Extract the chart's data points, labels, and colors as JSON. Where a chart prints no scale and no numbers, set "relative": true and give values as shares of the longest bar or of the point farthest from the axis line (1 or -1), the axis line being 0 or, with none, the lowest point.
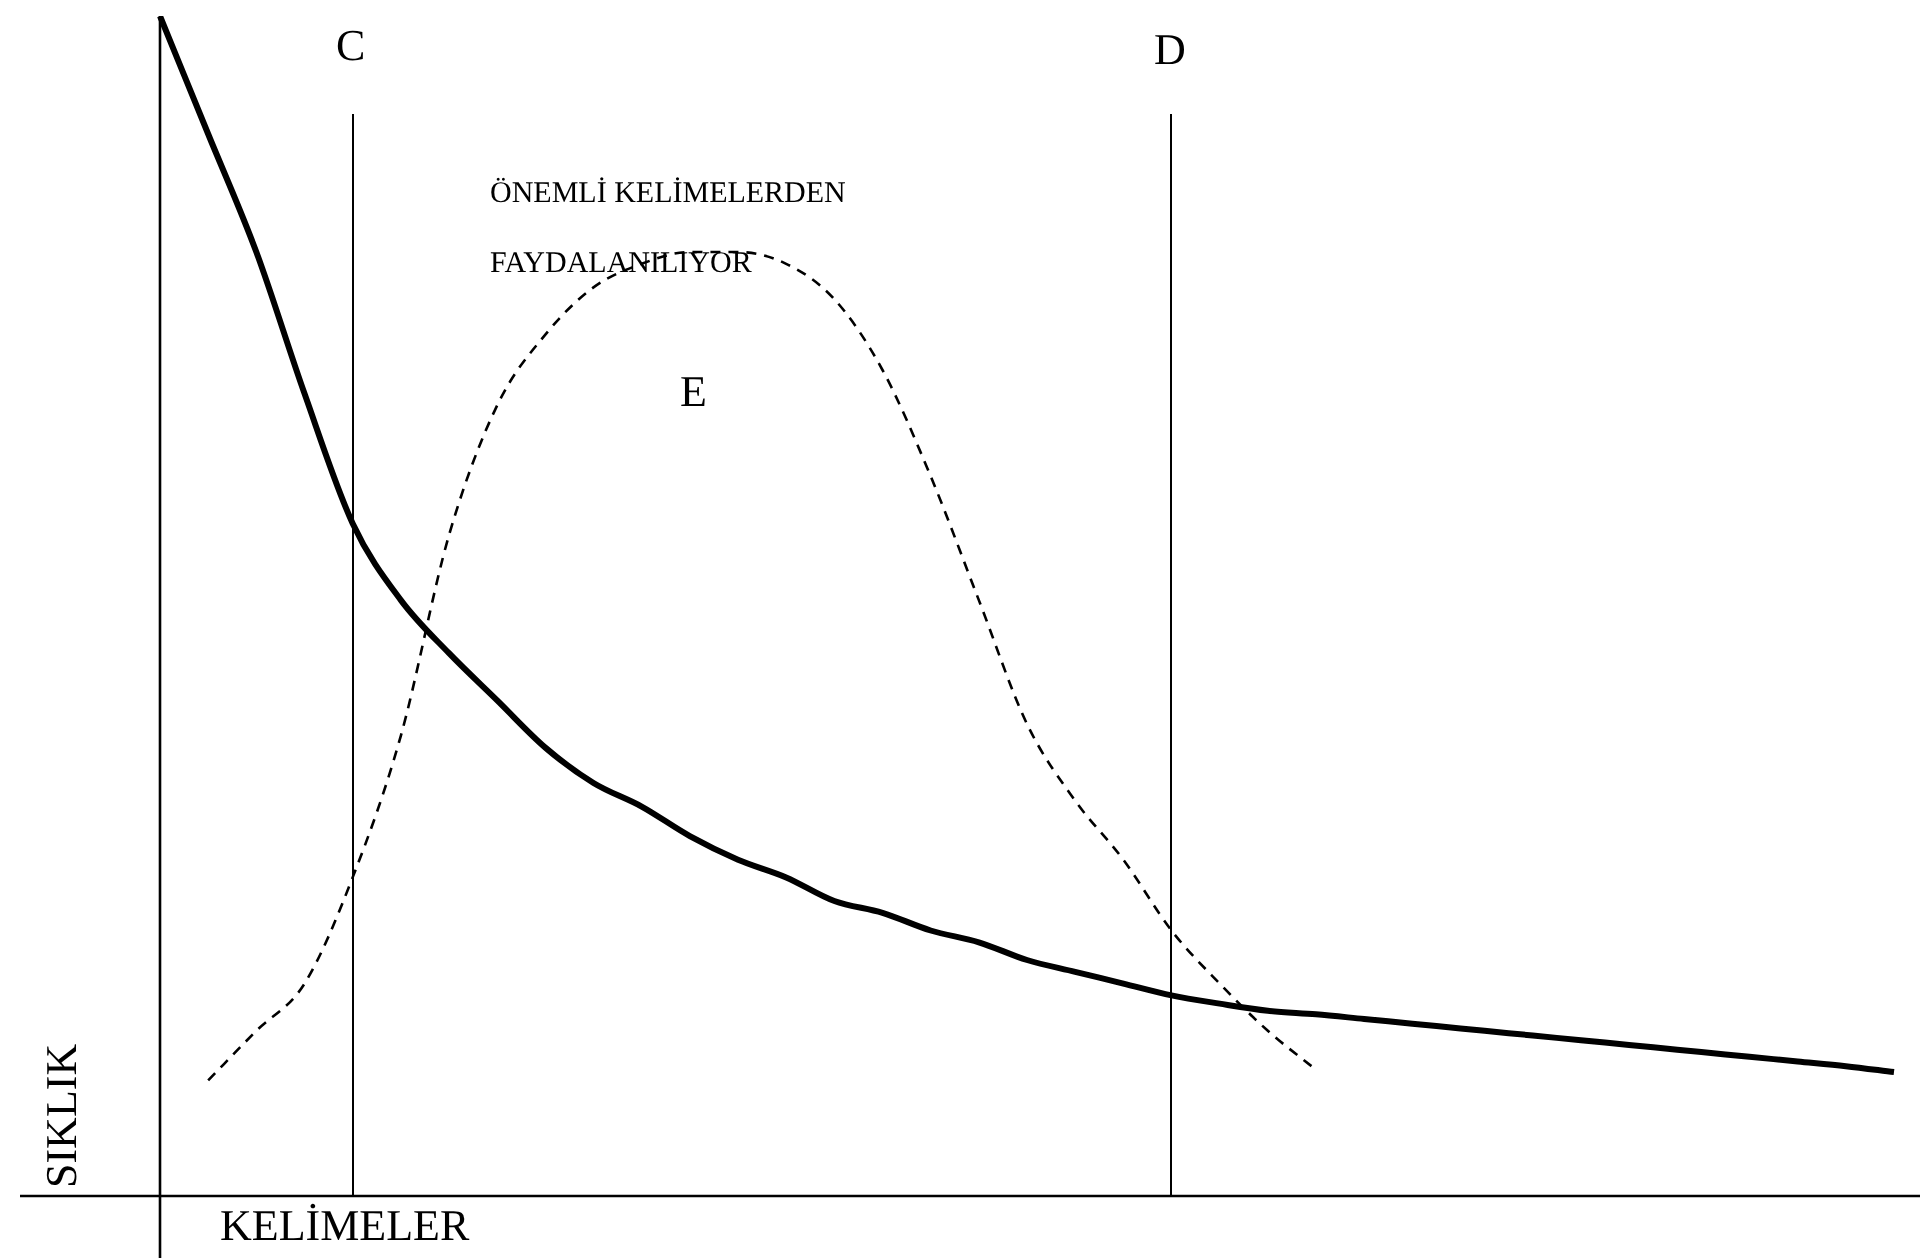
{
  "chart_data": {
    "type": "line",
    "relative": true,
    "xlabel": "KELİMELER",
    "ylabel": "SIKLIK",
    "annotations": [
      "ÖNEMLİ KELİMELERDEN",
      "FAYDALANILIYOR",
      "E",
      "C",
      "D"
    ],
    "categories": [
      null,
      null,
      null,
      null,
      null,
      null,
      null,
      null,
      null,
      null,
      null,
      null,
      null,
      null,
      null,
      null,
      null,
      null,
      null,
      null,
      null,
      null,
      null,
      null,
      null,
      null,
      null,
      null,
      null,
      null,
      null,
      null,
      null,
      null,
      null,
      null,
      null
    ],
    "series": [
      {
        "color": "#000000",
        "line_style": "solid",
        "values": [
          1.0,
          0.9,
          0.8,
          0.68,
          0.57,
          0.505,
          0.46,
          0.42,
          0.38,
          0.35,
          0.33,
          0.305,
          0.285,
          0.27,
          0.25,
          0.24,
          0.225,
          0.215,
          0.2,
          0.19,
          0.18,
          0.17,
          0.163,
          0.157,
          0.154,
          0.15,
          0.146,
          0.142,
          0.138,
          0.134,
          0.13,
          0.126,
          0.122,
          0.118,
          0.114,
          0.11,
          0.105
        ]
      },
      {
        "color": "#000000",
        "line_style": "dashed",
        "values": [
          null,
          0.098,
          0.14,
          0.18,
          0.27,
          0.39,
          0.56,
          0.67,
          0.73,
          0.77,
          0.79,
          0.8,
          0.8,
          0.79,
          0.76,
          0.7,
          0.61,
          0.505,
          0.4,
          0.335,
          0.285,
          0.225,
          0.18,
          0.14,
          0.107,
          null,
          null,
          null,
          null,
          null,
          null,
          null,
          null,
          null,
          null,
          null,
          null
        ]
      }
    ],
    "legend": false,
    "marker": "none"
  }
}
